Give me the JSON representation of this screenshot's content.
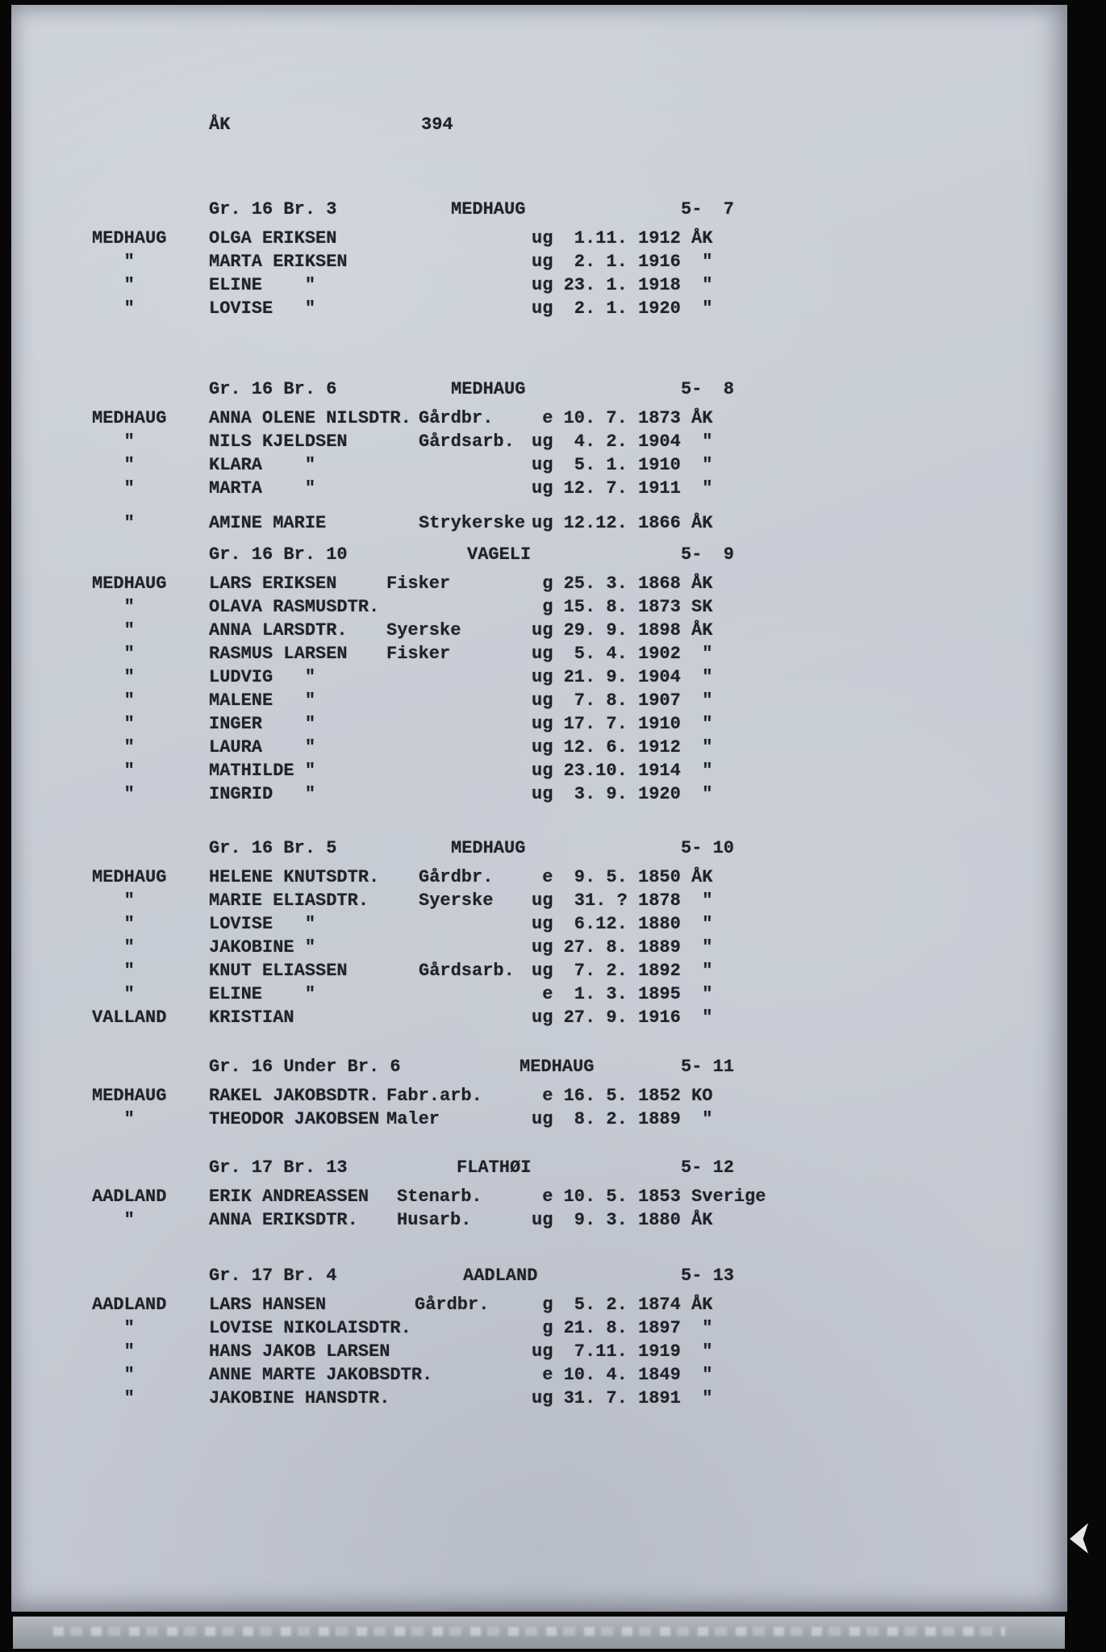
{
  "page": {
    "code": "ÅK",
    "number": "394"
  },
  "colors": {
    "paper": "#cad0d9",
    "ink": "#212227",
    "border": "#070708"
  },
  "sections": [
    {
      "ref": "Gr. 16 Br. 3",
      "place": "MEDHAUG",
      "id": "5-  7",
      "rows": [
        {
          "farm": "MEDHAUG",
          "name": "OLGA ERIKSEN",
          "occ": "",
          "status": "ug",
          "date": "1.11.",
          "year": "1912",
          "born": "ÅK"
        },
        {
          "farm": "\"",
          "name": "MARTA ERIKSEN",
          "occ": "",
          "status": "ug",
          "date": "2. 1.",
          "year": "1916",
          "born": "\""
        },
        {
          "farm": "\"",
          "name": "ELINE",
          "name_ditto": true,
          "occ": "",
          "status": "ug",
          "date": "23. 1.",
          "year": "1918",
          "born": "\""
        },
        {
          "farm": "\"",
          "name": "LOVISE",
          "name_ditto": true,
          "occ": "",
          "status": "ug",
          "date": "2. 1.",
          "year": "1920",
          "born": "\""
        }
      ]
    },
    {
      "ref": "Gr. 16 Br. 6",
      "place": "MEDHAUG",
      "id": "5-  8",
      "rows": [
        {
          "farm": "MEDHAUG",
          "name": "ANNA OLENE NILSDTR.",
          "occ": "Gårdbr.",
          "status": "e",
          "date": "10. 7.",
          "year": "1873",
          "born": "ÅK"
        },
        {
          "farm": "\"",
          "name": "NILS KJELDSEN",
          "occ": "Gårdsarb.",
          "status": "ug",
          "date": "4. 2.",
          "year": "1904",
          "born": "\""
        },
        {
          "farm": "\"",
          "name": "KLARA",
          "name_ditto": true,
          "occ": "",
          "status": "ug",
          "date": "5. 1.",
          "year": "1910",
          "born": "\""
        },
        {
          "farm": "\"",
          "name": "MARTA",
          "name_ditto": true,
          "occ": "",
          "status": "ug",
          "date": "12. 7.",
          "year": "1911",
          "born": "\""
        },
        {
          "farm": "\"",
          "name": "AMINE MARIE",
          "occ": "Strykerske",
          "status": "ug",
          "date": "12.12.",
          "year": "1866",
          "born": "ÅK",
          "gap_before": true
        }
      ]
    },
    {
      "ref": "Gr. 16 Br. 10",
      "place": "VAGELI",
      "id": "5-  9",
      "rows": [
        {
          "farm": "MEDHAUG",
          "name": "LARS ERIKSEN",
          "occ": "Fisker",
          "status": "g",
          "date": "25. 3.",
          "year": "1868",
          "born": "ÅK"
        },
        {
          "farm": "\"",
          "name": "OLAVA RASMUSDTR.",
          "occ": "",
          "status": "g",
          "date": "15. 8.",
          "year": "1873",
          "born": "SK"
        },
        {
          "farm": "\"",
          "name": "ANNA LARSDTR.",
          "occ": "Syerske",
          "status": "ug",
          "date": "29. 9.",
          "year": "1898",
          "born": "ÅK"
        },
        {
          "farm": "\"",
          "name": "RASMUS LARSEN",
          "occ": "Fisker",
          "status": "ug",
          "date": "5. 4.",
          "year": "1902",
          "born": "\""
        },
        {
          "farm": "\"",
          "name": "LUDVIG",
          "name_ditto": true,
          "occ": "",
          "status": "ug",
          "date": "21. 9.",
          "year": "1904",
          "born": "\""
        },
        {
          "farm": "\"",
          "name": "MALENE",
          "name_ditto": true,
          "occ": "",
          "status": "ug",
          "date": "7. 8.",
          "year": "1907",
          "born": "\""
        },
        {
          "farm": "\"",
          "name": "INGER",
          "name_ditto": true,
          "occ": "",
          "status": "ug",
          "date": "17. 7.",
          "year": "1910",
          "born": "\""
        },
        {
          "farm": "\"",
          "name": "LAURA",
          "name_ditto": true,
          "occ": "",
          "status": "ug",
          "date": "12. 6.",
          "year": "1912",
          "born": "\""
        },
        {
          "farm": "\"",
          "name": "MATHILDE",
          "name_ditto": true,
          "occ": "",
          "status": "ug",
          "date": "23.10.",
          "year": "1914",
          "born": "\""
        },
        {
          "farm": "\"",
          "name": "INGRID",
          "name_ditto": true,
          "occ": "",
          "status": "ug",
          "date": "3. 9.",
          "year": "1920",
          "born": "\""
        }
      ]
    },
    {
      "ref": "Gr. 16 Br. 5",
      "place": "MEDHAUG",
      "id": "5- 10",
      "rows": [
        {
          "farm": "MEDHAUG",
          "name": "HELENE KNUTSDTR.",
          "occ": "Gårdbr.",
          "status": "e",
          "date": "9. 5.",
          "year": "1850",
          "born": "ÅK"
        },
        {
          "farm": "\"",
          "name": "MARIE ELIASDTR.",
          "occ": "Syerske",
          "status": "ug",
          "date": "31. ?",
          "year": "1878",
          "born": "\""
        },
        {
          "farm": "\"",
          "name": "LOVISE",
          "name_ditto": true,
          "occ": "",
          "status": "ug",
          "date": "6.12.",
          "year": "1880",
          "born": "\""
        },
        {
          "farm": "\"",
          "name": "JAKOBINE",
          "name_ditto": true,
          "occ": "",
          "status": "ug",
          "date": "27. 8.",
          "year": "1889",
          "born": "\""
        },
        {
          "farm": "\"",
          "name": "KNUT ELIASSEN",
          "occ": "Gårdsarb.",
          "status": "ug",
          "date": "7. 2.",
          "year": "1892",
          "born": "\""
        },
        {
          "farm": "\"",
          "name": "ELINE",
          "name_ditto": true,
          "occ": "",
          "status": "e",
          "date": "1. 3.",
          "year": "1895",
          "born": "\""
        },
        {
          "farm": "VALLAND",
          "name": "KRISTIAN",
          "occ": "",
          "status": "ug",
          "date": "27. 9.",
          "year": "1916",
          "born": "\""
        }
      ]
    },
    {
      "ref": "Gr. 16 Under Br. 6",
      "place": "MEDHAUG",
      "id": "5- 11",
      "rows": [
        {
          "farm": "MEDHAUG",
          "name": "RAKEL JAKOBSDTR.",
          "occ": "Fabr.arb.",
          "status": "e",
          "date": "16. 5.",
          "year": "1852",
          "born": "KO"
        },
        {
          "farm": "\"",
          "name": "THEODOR JAKOBSEN",
          "occ": "Maler",
          "status": "ug",
          "date": "8. 2.",
          "year": "1889",
          "born": "\""
        }
      ]
    },
    {
      "ref": "Gr. 17 Br. 13",
      "place": "FLATHØI",
      "id": "5- 12",
      "rows": [
        {
          "farm": "AADLAND",
          "name": "ERIK ANDREASSEN",
          "occ": "Stenarb.",
          "status": "e",
          "date": "10. 5.",
          "year": "1853",
          "born": "Sverige"
        },
        {
          "farm": "\"",
          "name": "ANNA ERIKSDTR.",
          "occ": "Husarb.",
          "status": "ug",
          "date": "9. 3.",
          "year": "1880",
          "born": "ÅK"
        }
      ]
    },
    {
      "ref": "Gr. 17 Br. 4",
      "place": "AADLAND",
      "id": "5- 13",
      "rows": [
        {
          "farm": "AADLAND",
          "name": "LARS HANSEN",
          "occ": "Gårdbr.",
          "status": "g",
          "date": "5. 2.",
          "year": "1874",
          "born": "ÅK"
        },
        {
          "farm": "\"",
          "name": "LOVISE NIKOLAISDTR.",
          "occ": "",
          "status": "g",
          "date": "21. 8.",
          "year": "1897",
          "born": "\""
        },
        {
          "farm": "\"",
          "name": "HANS JAKOB LARSEN",
          "occ": "",
          "status": "ug",
          "date": "7.11.",
          "year": "1919",
          "born": "\""
        },
        {
          "farm": "\"",
          "name": "ANNE MARTE JAKOBSDTR.",
          "occ": "",
          "status": "e",
          "date": "10. 4.",
          "year": "1849",
          "born": "\""
        },
        {
          "farm": "\"",
          "name": "JAKOBINE HANSDTR.",
          "occ": "",
          "status": "ug",
          "date": "31. 7.",
          "year": "1891",
          "born": "\""
        }
      ]
    }
  ]
}
